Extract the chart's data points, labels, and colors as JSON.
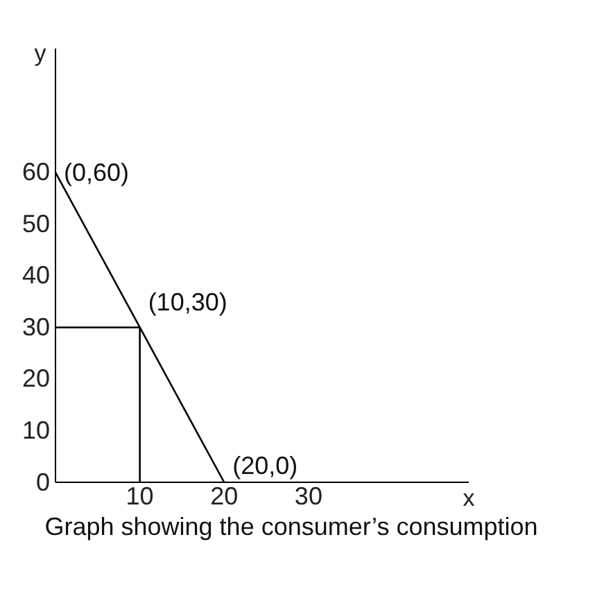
{
  "chart_data": {
    "type": "line",
    "xlabel": "x",
    "ylabel": "y",
    "annotations": [
      {
        "text": "(0,60)",
        "x": 0,
        "y": 60
      },
      {
        "text": "(10,30)",
        "x": 10,
        "y": 30
      },
      {
        "text": "(20,0)",
        "x": 20,
        "y": 0
      },
      "Graph showing the consumer’s consumption"
    ],
    "series": [
      {
        "color": "#000000",
        "x": [
          0,
          10,
          20
        ],
        "values": [
          60,
          30,
          0
        ]
      },
      {
        "color": "#000000",
        "x": [
          0,
          10
        ],
        "values": [
          30,
          30
        ]
      },
      {
        "color": "#000000",
        "x": [
          10,
          10
        ],
        "values": [
          30,
          0
        ]
      }
    ],
    "xlim": [
      0,
      49
    ],
    "ylim": [
      0,
      84
    ],
    "xticks": [
      10,
      20,
      30
    ],
    "yticks": [
      0,
      10,
      20,
      30,
      40,
      50,
      60
    ],
    "grid": false,
    "marker": "none",
    "line_style": "solid"
  }
}
